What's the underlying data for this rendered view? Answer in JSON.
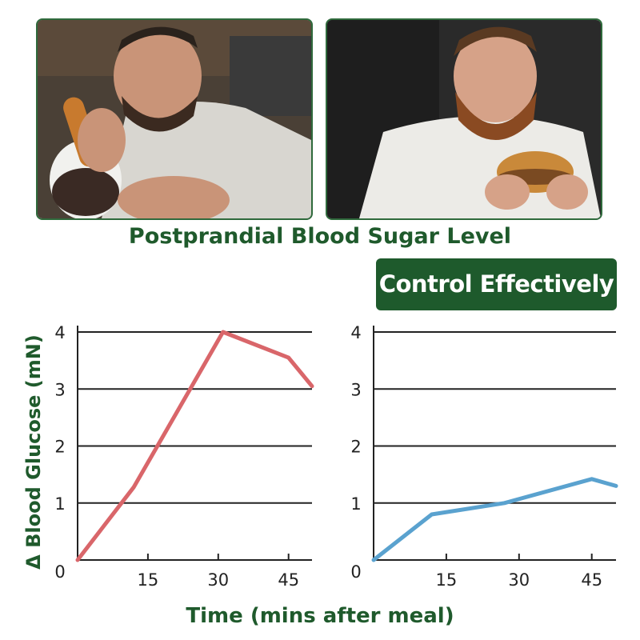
{
  "photos": [
    {
      "description_icon": "man-eating-dessert-photo"
    },
    {
      "description_icon": "man-eating-burger-photo"
    }
  ],
  "title": "Postprandial Blood Sugar Level",
  "badge": "Control Effectively",
  "colors": {
    "brand_green": "#1e5a2c",
    "series_before": "#d9666a",
    "series_after": "#5aa2cf",
    "grid": "#222222"
  },
  "chart_data": [
    {
      "type": "line",
      "ylabel": "Δ Blood Glucose (mN)",
      "xlabel": "Time (mins after meal)",
      "x_ticks": [
        "0",
        "15",
        "30",
        "45"
      ],
      "y_ticks": [
        "1",
        "2",
        "3",
        "4"
      ],
      "xlim": [
        0,
        50
      ],
      "ylim": [
        0,
        4
      ],
      "grid": true,
      "series": [
        {
          "color": "#d9666a",
          "x": [
            0,
            12,
            31,
            45,
            50
          ],
          "y": [
            0,
            1.28,
            4.0,
            3.55,
            3.05
          ]
        }
      ]
    },
    {
      "type": "line",
      "ylabel": "Δ Blood Glucose (mN)",
      "xlabel": "Time (mins after meal)",
      "x_ticks": [
        "0",
        "15",
        "30",
        "45"
      ],
      "y_ticks": [
        "1",
        "2",
        "3",
        "4"
      ],
      "xlim": [
        0,
        50
      ],
      "ylim": [
        0,
        4
      ],
      "grid": true,
      "series": [
        {
          "color": "#5aa2cf",
          "x": [
            0,
            12,
            27,
            45,
            50
          ],
          "y": [
            0,
            0.8,
            1.0,
            1.42,
            1.3
          ]
        }
      ]
    }
  ]
}
